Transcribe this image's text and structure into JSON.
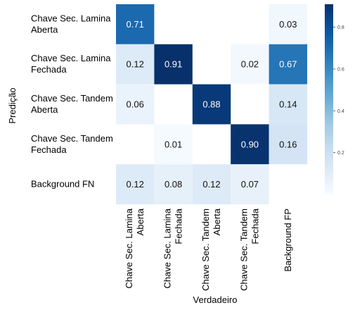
{
  "chart_data": {
    "type": "heatmap",
    "title": "",
    "xlabel": "Verdadeiro",
    "ylabel": "Predição",
    "x_categories": [
      [
        "Chave Sec. Lamina",
        "Aberta"
      ],
      [
        "Chave Sec. Lamina",
        "Fechada"
      ],
      [
        "Chave Sec. Tandem",
        "Aberta"
      ],
      [
        "Chave Sec. Tandem",
        "Fechada"
      ],
      [
        "Background FP"
      ]
    ],
    "y_categories": [
      [
        "Chave Sec. Lamina",
        "Aberta"
      ],
      [
        "Chave Sec. Lamina",
        "Fechada"
      ],
      [
        "Chave Sec. Tandem",
        "Aberta"
      ],
      [
        "Chave Sec. Tandem",
        "Fechada"
      ],
      [
        "Background FN"
      ]
    ],
    "values": [
      [
        0.71,
        null,
        null,
        null,
        0.03
      ],
      [
        0.12,
        0.91,
        null,
        0.02,
        0.67
      ],
      [
        0.06,
        null,
        0.88,
        null,
        0.14
      ],
      [
        null,
        0.01,
        null,
        0.9,
        0.16
      ],
      [
        0.12,
        0.08,
        0.12,
        0.07,
        null
      ]
    ],
    "colorbar": {
      "range": [
        0,
        0.91
      ],
      "ticks": [
        "0.2",
        "0.4",
        "0.6",
        "0.8"
      ],
      "colormap": "Blues"
    }
  }
}
